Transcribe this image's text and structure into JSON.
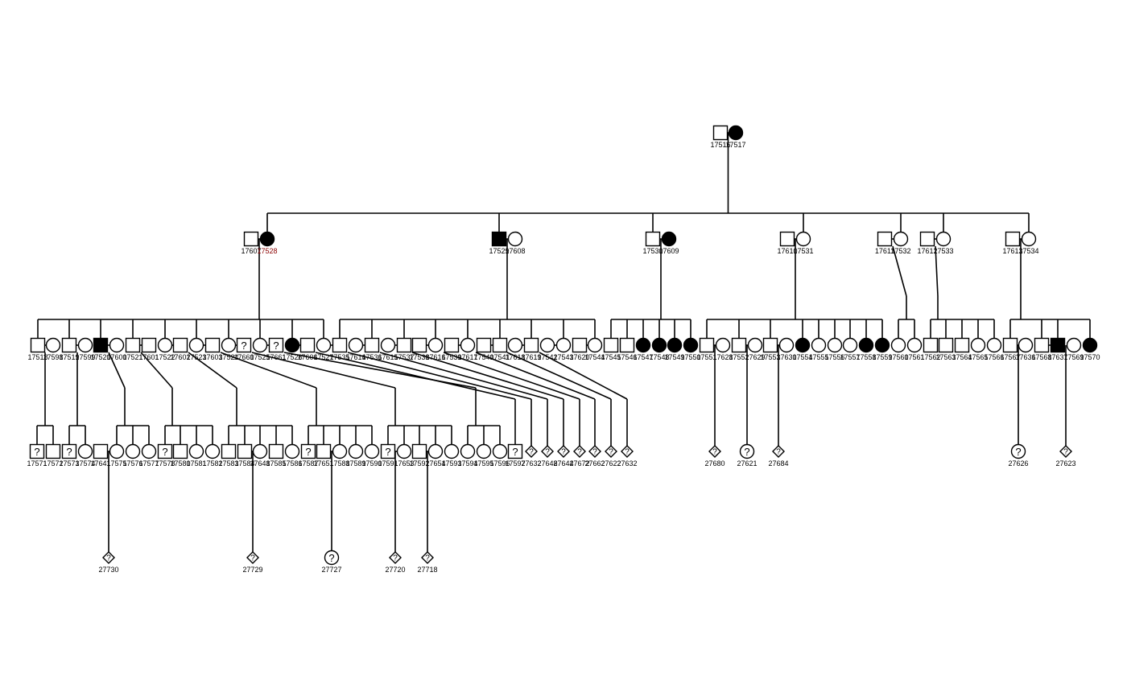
{
  "colors": {
    "line": "#000000",
    "affected": "#000000",
    "unaffected": "#ffffff",
    "proband_label": "#8b0000"
  },
  "founders": {
    "pair": [
      {
        "id": "17516",
        "sex": "M",
        "status": "unaffected"
      },
      {
        "id": "17517",
        "sex": "F",
        "status": "affected"
      }
    ]
  },
  "generation2": [
    {
      "id": "17607",
      "sex": "M",
      "status": "unaffected"
    },
    {
      "id": "17528",
      "sex": "F",
      "status": "affected",
      "label_color": "proband_label"
    },
    {
      "id": "17529",
      "sex": "M",
      "status": "affected"
    },
    {
      "id": "17608",
      "sex": "F",
      "status": "unaffected"
    },
    {
      "id": "17530",
      "sex": "M",
      "status": "unaffected"
    },
    {
      "id": "17609",
      "sex": "F",
      "status": "affected"
    },
    {
      "id": "17610",
      "sex": "M",
      "status": "unaffected"
    },
    {
      "id": "17531",
      "sex": "F",
      "status": "unaffected"
    },
    {
      "id": "17611",
      "sex": "M",
      "status": "unaffected"
    },
    {
      "id": "17532",
      "sex": "F",
      "status": "unaffected"
    },
    {
      "id": "17612",
      "sex": "M",
      "status": "unaffected"
    },
    {
      "id": "17533",
      "sex": "F",
      "status": "unaffected"
    },
    {
      "id": "17613",
      "sex": "M",
      "status": "unaffected"
    },
    {
      "id": "17534",
      "sex": "F",
      "status": "unaffected"
    }
  ],
  "generation3": [
    {
      "id": "17518",
      "sex": "M",
      "status": "unaffected"
    },
    {
      "id": "17598",
      "sex": "F",
      "status": "unaffected"
    },
    {
      "id": "17519",
      "sex": "M",
      "status": "unaffected"
    },
    {
      "id": "17599",
      "sex": "F",
      "status": "unaffected"
    },
    {
      "id": "17520",
      "sex": "M",
      "status": "affected"
    },
    {
      "id": "17600",
      "sex": "F",
      "status": "unaffected"
    },
    {
      "id": "17521",
      "sex": "M",
      "status": "unaffected"
    },
    {
      "id": "17601",
      "sex": "M",
      "status": "unaffected"
    },
    {
      "id": "17522",
      "sex": "F",
      "status": "unaffected"
    },
    {
      "id": "17602",
      "sex": "M",
      "status": "unaffected"
    },
    {
      "id": "17523",
      "sex": "F",
      "status": "unaffected"
    },
    {
      "id": "17603",
      "sex": "M",
      "status": "unaffected"
    },
    {
      "id": "17524",
      "sex": "F",
      "status": "unaffected"
    },
    {
      "id": "17660",
      "sex": "M",
      "status": "unknown"
    },
    {
      "id": "17525",
      "sex": "F",
      "status": "unaffected"
    },
    {
      "id": "17661",
      "sex": "M",
      "status": "unknown"
    },
    {
      "id": "17526",
      "sex": "F",
      "status": "affected"
    },
    {
      "id": "17606",
      "sex": "M",
      "status": "unaffected"
    },
    {
      "id": "17527",
      "sex": "F",
      "status": "unaffected"
    },
    {
      "id": "17535",
      "sex": "M",
      "status": "unaffected"
    },
    {
      "id": "17614",
      "sex": "F",
      "status": "unaffected"
    },
    {
      "id": "17536",
      "sex": "M",
      "status": "unaffected"
    },
    {
      "id": "17615",
      "sex": "F",
      "status": "unaffected"
    },
    {
      "id": "17537",
      "sex": "M",
      "status": "unaffected"
    },
    {
      "id": "17538",
      "sex": "M",
      "status": "unaffected"
    },
    {
      "id": "17616",
      "sex": "F",
      "status": "unaffected"
    },
    {
      "id": "17539",
      "sex": "M",
      "status": "unaffected"
    },
    {
      "id": "17617",
      "sex": "F",
      "status": "unaffected"
    },
    {
      "id": "17540",
      "sex": "M",
      "status": "unaffected"
    },
    {
      "id": "17541",
      "sex": "M",
      "status": "unaffected"
    },
    {
      "id": "17618",
      "sex": "F",
      "status": "unaffected"
    },
    {
      "id": "17619",
      "sex": "M",
      "status": "unaffected"
    },
    {
      "id": "17542",
      "sex": "F",
      "status": "unaffected"
    },
    {
      "id": "17543",
      "sex": "F",
      "status": "unaffected"
    },
    {
      "id": "17620",
      "sex": "M",
      "status": "unaffected"
    },
    {
      "id": "17544",
      "sex": "F",
      "status": "unaffected"
    },
    {
      "id": "17545",
      "sex": "M",
      "status": "unaffected"
    },
    {
      "id": "17546",
      "sex": "M",
      "status": "unaffected"
    },
    {
      "id": "17547",
      "sex": "F",
      "status": "affected"
    },
    {
      "id": "17548",
      "sex": "F",
      "status": "affected"
    },
    {
      "id": "17549",
      "sex": "F",
      "status": "affected"
    },
    {
      "id": "17550",
      "sex": "F",
      "status": "affected"
    },
    {
      "id": "17551",
      "sex": "M",
      "status": "unaffected"
    },
    {
      "id": "17628",
      "sex": "F",
      "status": "unaffected"
    },
    {
      "id": "17552",
      "sex": "M",
      "status": "unaffected"
    },
    {
      "id": "17629",
      "sex": "F",
      "status": "unaffected"
    },
    {
      "id": "17553",
      "sex": "M",
      "status": "unaffected"
    },
    {
      "id": "17630",
      "sex": "F",
      "status": "unaffected"
    },
    {
      "id": "17554",
      "sex": "F",
      "status": "affected"
    },
    {
      "id": "17555",
      "sex": "F",
      "status": "unaffected"
    },
    {
      "id": "17556",
      "sex": "F",
      "status": "unaffected"
    },
    {
      "id": "17557",
      "sex": "F",
      "status": "unaffected"
    },
    {
      "id": "17558",
      "sex": "F",
      "status": "affected"
    },
    {
      "id": "17559",
      "sex": "F",
      "status": "affected"
    },
    {
      "id": "17560",
      "sex": "F",
      "status": "unaffected"
    },
    {
      "id": "17561",
      "sex": "F",
      "status": "unaffected"
    },
    {
      "id": "17562",
      "sex": "M",
      "status": "unaffected"
    },
    {
      "id": "17563",
      "sex": "M",
      "status": "unaffected"
    },
    {
      "id": "17564",
      "sex": "M",
      "status": "unaffected"
    },
    {
      "id": "17565",
      "sex": "F",
      "status": "unaffected"
    },
    {
      "id": "17566",
      "sex": "F",
      "status": "unaffected"
    },
    {
      "id": "17567",
      "sex": "M",
      "status": "unaffected"
    },
    {
      "id": "17636",
      "sex": "F",
      "status": "unaffected"
    },
    {
      "id": "17568",
      "sex": "M",
      "status": "unaffected"
    },
    {
      "id": "17637",
      "sex": "M",
      "status": "affected"
    },
    {
      "id": "17569",
      "sex": "F",
      "status": "unaffected"
    },
    {
      "id": "17570",
      "sex": "F",
      "status": "affected"
    }
  ],
  "generation4": [
    {
      "id": "17571",
      "sex": "M",
      "status": "unknown"
    },
    {
      "id": "17572",
      "sex": "M",
      "status": "unaffected"
    },
    {
      "id": "17573",
      "sex": "M",
      "status": "unknown"
    },
    {
      "id": "17574",
      "sex": "F",
      "status": "unaffected"
    },
    {
      "id": "17641",
      "sex": "M",
      "status": "unaffected"
    },
    {
      "id": "17575",
      "sex": "F",
      "status": "unaffected"
    },
    {
      "id": "17576",
      "sex": "F",
      "status": "unaffected"
    },
    {
      "id": "17577",
      "sex": "F",
      "status": "unaffected"
    },
    {
      "id": "17578",
      "sex": "M",
      "status": "unknown"
    },
    {
      "id": "17580",
      "sex": "M",
      "status": "unaffected"
    },
    {
      "id": "17581",
      "sex": "F",
      "status": "unaffected"
    },
    {
      "id": "17582",
      "sex": "F",
      "status": "unaffected"
    },
    {
      "id": "17583",
      "sex": "M",
      "status": "unaffected"
    },
    {
      "id": "17584",
      "sex": "M",
      "status": "unaffected"
    },
    {
      "id": "17648",
      "sex": "F",
      "status": "unaffected"
    },
    {
      "id": "17585",
      "sex": "M",
      "status": "unaffected"
    },
    {
      "id": "17586",
      "sex": "F",
      "status": "unaffected"
    },
    {
      "id": "17587",
      "sex": "M",
      "status": "unknown"
    },
    {
      "id": "17651",
      "sex": "M",
      "status": "unaffected"
    },
    {
      "id": "17588",
      "sex": "F",
      "status": "unaffected"
    },
    {
      "id": "17589",
      "sex": "F",
      "status": "unaffected"
    },
    {
      "id": "17590",
      "sex": "F",
      "status": "unaffected"
    },
    {
      "id": "17591",
      "sex": "M",
      "status": "unknown"
    },
    {
      "id": "17653",
      "sex": "F",
      "status": "unaffected"
    },
    {
      "id": "17592",
      "sex": "M",
      "status": "unaffected"
    },
    {
      "id": "17654",
      "sex": "F",
      "status": "unaffected"
    },
    {
      "id": "17593",
      "sex": "F",
      "status": "unaffected"
    },
    {
      "id": "17594",
      "sex": "F",
      "status": "unaffected"
    },
    {
      "id": "17595",
      "sex": "F",
      "status": "unaffected"
    },
    {
      "id": "17596",
      "sex": "F",
      "status": "unaffected"
    },
    {
      "id": "17597",
      "sex": "M",
      "status": "unknown"
    },
    {
      "id": "27632",
      "sex": "U",
      "status": "unknown"
    },
    {
      "id": "27648",
      "sex": "U",
      "status": "unknown"
    },
    {
      "id": "27644",
      "sex": "U",
      "status": "unknown"
    },
    {
      "id": "27672",
      "sex": "U",
      "status": "unknown"
    },
    {
      "id": "27662",
      "sex": "U",
      "status": "unknown"
    },
    {
      "id": "27622",
      "sex": "U",
      "status": "unknown"
    },
    {
      "id": "27632",
      "sex": "U",
      "status": "unknown"
    },
    {
      "id": "27680",
      "sex": "U",
      "status": "unknown"
    },
    {
      "id": "27621",
      "sex": "F",
      "status": "unknown"
    },
    {
      "id": "27684",
      "sex": "U",
      "status": "unknown"
    },
    {
      "id": "27626",
      "sex": "F",
      "status": "unknown"
    },
    {
      "id": "27623",
      "sex": "U",
      "status": "unknown"
    }
  ],
  "generation5": [
    {
      "id": "27730",
      "sex": "U",
      "status": "unknown"
    },
    {
      "id": "27729",
      "sex": "U",
      "status": "unknown"
    },
    {
      "id": "27727",
      "sex": "F",
      "status": "unknown"
    },
    {
      "id": "27720",
      "sex": "U",
      "status": "unknown"
    },
    {
      "id": "27718",
      "sex": "U",
      "status": "unknown"
    }
  ],
  "question_mark": "?"
}
